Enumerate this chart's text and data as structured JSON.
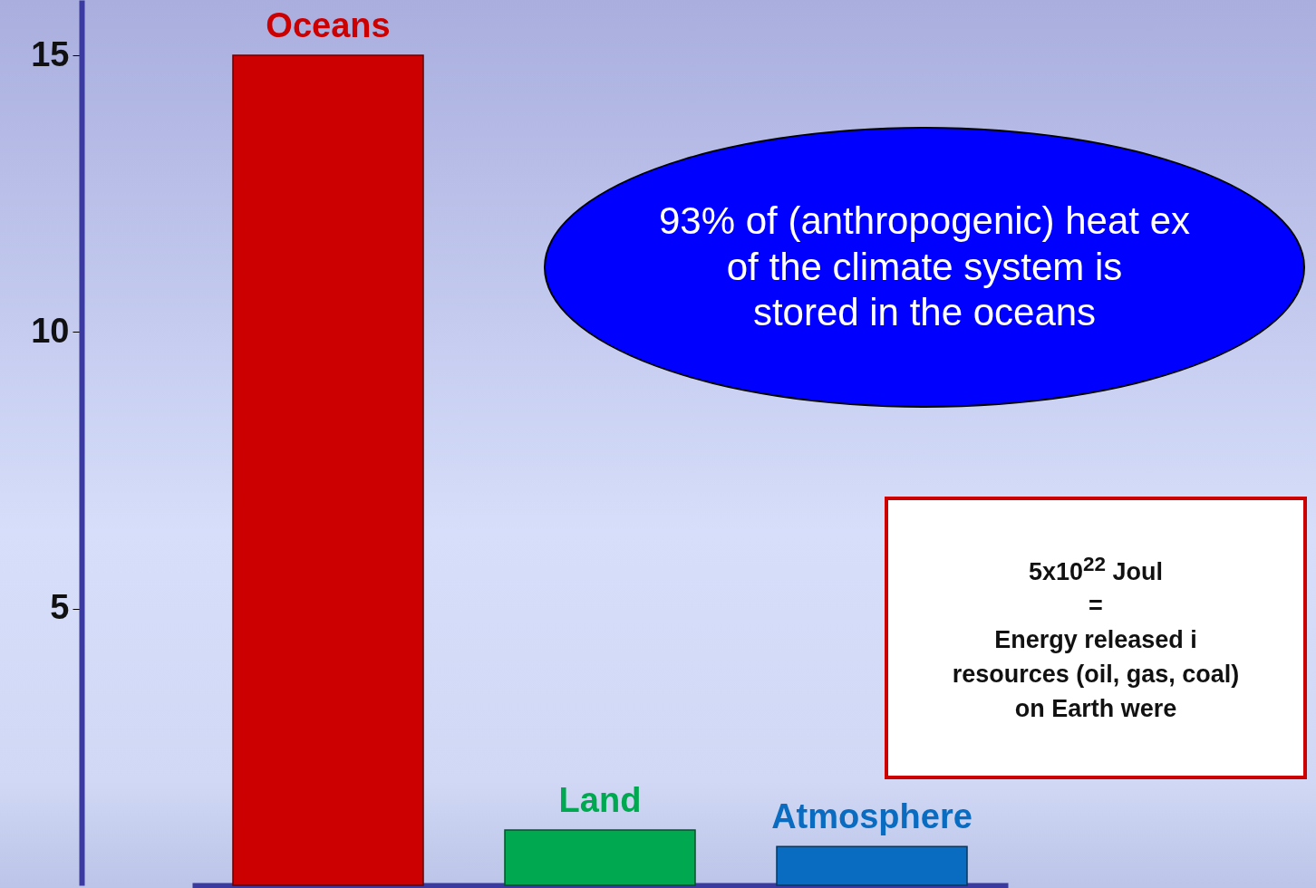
{
  "chart_data": {
    "type": "bar",
    "categories": [
      "Oceans",
      "Land",
      "Atmosphere"
    ],
    "values": [
      15,
      1,
      0.7
    ],
    "colors": [
      "#cc0000",
      "#00a84f",
      "#0a6cc0"
    ],
    "ylim": [
      0,
      16
    ],
    "yticks": [
      5,
      10,
      15
    ],
    "grid": false,
    "annotations": [
      "93% of (anthropogenic) heat ex\nof the climate system is\nstored in the oceans",
      "5x10$^{22}$ Joul\n=\nEnergy  released i\nresources (oil, gas, coal)\non Earth were"
    ]
  }
}
